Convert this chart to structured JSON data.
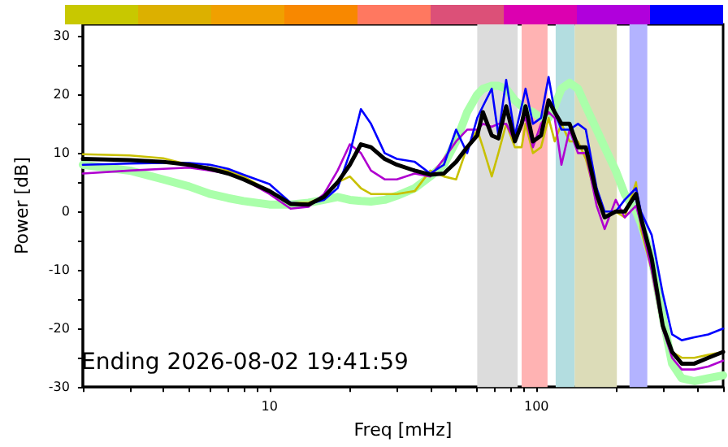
{
  "chart_data": {
    "type": "line",
    "xlabel": "Freq [mHz]",
    "ylabel": "Power [dB]",
    "log": "x",
    "x": [
      2,
      3,
      4,
      5,
      6,
      7,
      8,
      10,
      12,
      14,
      16,
      18,
      20,
      22,
      24,
      27,
      30,
      35,
      40,
      45,
      50,
      55,
      60,
      63,
      68,
      72,
      77,
      83,
      88,
      91,
      97,
      104,
      111,
      117,
      124,
      133,
      143,
      153,
      168,
      180,
      198,
      214,
      236,
      246,
      270,
      297,
      322,
      350,
      390,
      440,
      500
    ],
    "xlim": [
      2,
      500
    ],
    "xticks": [
      {
        "value": 2,
        "label": null
      },
      {
        "value": 3,
        "label": null
      },
      {
        "value": 4,
        "label": null
      },
      {
        "value": 5,
        "label": null
      },
      {
        "value": 6,
        "label": null
      },
      {
        "value": 7,
        "label": null
      },
      {
        "value": 8,
        "label": null
      },
      {
        "value": 9,
        "label": null
      },
      10,
      {
        "value": 20,
        "label": null
      },
      {
        "value": 30,
        "label": null
      },
      {
        "value": 40,
        "label": null
      },
      {
        "value": 50,
        "label": null
      },
      {
        "value": 60,
        "label": null
      },
      {
        "value": 70,
        "label": null
      },
      {
        "value": 80,
        "label": null
      },
      {
        "value": 90,
        "label": null
      },
      100,
      {
        "value": 200,
        "label": null
      },
      {
        "value": 300,
        "label": null
      },
      {
        "value": 400,
        "label": null
      },
      {
        "value": 500,
        "label": null
      }
    ],
    "ylim": [
      -30,
      32
    ],
    "yticks": [
      -30,
      {
        "value": -25,
        "label": null
      },
      -20,
      {
        "value": -15,
        "label": null
      },
      -10,
      {
        "value": -5,
        "label": null
      },
      0,
      {
        "value": 5,
        "label": null
      },
      10,
      {
        "value": 15,
        "label": null
      },
      20,
      {
        "value": 25,
        "label": null
      },
      30
    ],
    "grid": false,
    "marker": "none",
    "line_style": "solid",
    "series": [
      {
        "color": "#aaffaa",
        "values": [
          8,
          7,
          5.5,
          4.3,
          3,
          2.3,
          1.8,
          1.2,
          1.2,
          1.5,
          2,
          2.5,
          2,
          1.8,
          1.7,
          2,
          2.7,
          4,
          6,
          8,
          12,
          17,
          20,
          21,
          21.5,
          21.5,
          21,
          19,
          18,
          17.5,
          17,
          16,
          16,
          18,
          21,
          22,
          21,
          18,
          14,
          11,
          7,
          3,
          0,
          -2,
          -8,
          -18,
          -26,
          -28.5,
          -29,
          -28.5,
          -28
        ]
      },
      {
        "color": "#c8c000",
        "values": [
          9.8,
          9.6,
          9.1,
          8,
          7.5,
          7,
          6,
          3.5,
          1.5,
          1.5,
          2.5,
          5,
          6,
          4,
          3,
          3,
          3,
          3.5,
          7,
          6,
          5.5,
          11,
          14,
          11,
          6,
          10,
          15,
          11,
          11,
          15,
          10,
          11,
          16,
          12,
          15,
          12,
          12,
          9,
          2,
          -1,
          0,
          -1,
          5,
          -3,
          -10,
          -20,
          -24,
          -25,
          -25,
          -24.5,
          -24
        ]
      },
      {
        "color": "#b000d0",
        "values": [
          6.5,
          7,
          7.3,
          7.5,
          7,
          6.5,
          5.5,
          3,
          0.5,
          0.8,
          3,
          7,
          11.5,
          10,
          7,
          5.5,
          5.5,
          6.5,
          6,
          9,
          12,
          14,
          14,
          15,
          14.5,
          15,
          15,
          12,
          15,
          16,
          11,
          15,
          17,
          16,
          8,
          14,
          10,
          10,
          1,
          -3,
          2,
          -1,
          1,
          -2,
          -10,
          -20,
          -25,
          -27,
          -27,
          -26.5,
          -25.5
        ]
      },
      {
        "color": "#0000ff",
        "values": [
          8,
          8.2,
          8.3,
          8.3,
          8,
          7.3,
          6.3,
          4.7,
          1.5,
          1.3,
          2,
          4,
          10,
          17.5,
          15,
          10,
          9,
          8.5,
          6.5,
          8,
          14,
          10,
          16,
          18,
          21,
          13,
          22.5,
          13,
          18,
          21,
          15,
          16,
          23,
          17,
          14,
          14,
          15,
          14,
          4,
          0,
          0,
          2,
          4,
          0,
          -4,
          -14,
          -21,
          -22,
          -21.5,
          -21,
          -20
        ]
      },
      {
        "color": "#000000",
        "values": [
          9,
          8.8,
          8.5,
          8,
          7.3,
          6.5,
          5.5,
          3.5,
          1.3,
          1.2,
          2.5,
          5,
          8,
          11.5,
          11,
          9,
          8,
          7,
          6.3,
          6.5,
          8.5,
          11,
          13,
          17,
          13,
          12.5,
          18,
          12,
          15,
          18,
          12,
          13,
          19,
          17,
          15,
          15,
          11,
          11,
          3,
          -1,
          0,
          0,
          3,
          -1,
          -8,
          -19.5,
          -24,
          -26,
          -26,
          -25,
          -24
        ]
      }
    ],
    "bands": [
      {
        "axis": "x",
        "from": 60,
        "to": 85,
        "label": null,
        "color": "#dcdcdc"
      },
      {
        "axis": "x",
        "from": 88,
        "to": 110,
        "label": null,
        "color": "#ffb3b3"
      },
      {
        "axis": "x",
        "from": 118,
        "to": 139,
        "label": null,
        "color": "#b3dde0"
      },
      {
        "axis": "x",
        "from": 139,
        "to": 200,
        "label": null,
        "color": "#dcdcb8"
      },
      {
        "axis": "x",
        "from": 223,
        "to": 260,
        "label": null,
        "color": "#b3b3ff"
      }
    ],
    "annotations": [
      "Ending 2026-08-02 19:41:59"
    ]
  }
}
